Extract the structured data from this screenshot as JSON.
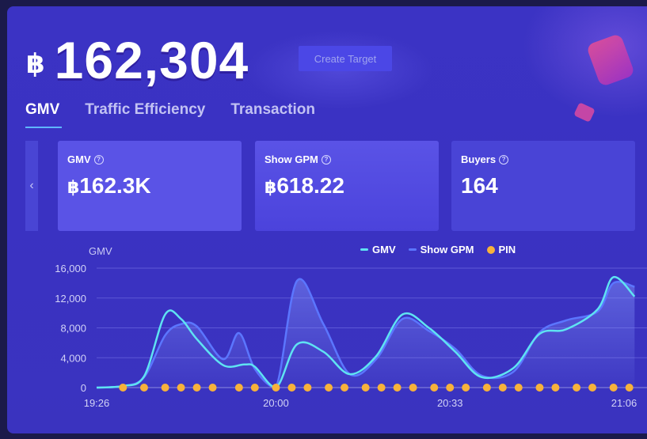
{
  "hero": {
    "currency": "฿",
    "value": "162,304",
    "target_button": "Create Target"
  },
  "tabs": [
    {
      "label": "GMV",
      "active": true
    },
    {
      "label": "Traffic Efficiency",
      "active": false
    },
    {
      "label": "Transaction",
      "active": false
    }
  ],
  "carousel": {
    "prev_icon": "chevron-left-icon",
    "prev_glyph": "‹"
  },
  "cards": [
    {
      "label": "GMV",
      "currency": "฿",
      "value": "162.3K",
      "highlight": true
    },
    {
      "label": "Show GPM",
      "currency": "฿",
      "value": "618.22",
      "highlight": true
    },
    {
      "label": "Buyers",
      "currency": "",
      "value": "164",
      "highlight": false
    }
  ],
  "help_glyph": "?",
  "chart_data": {
    "type": "line",
    "ylabel": "GMV",
    "ylim": [
      0,
      16000
    ],
    "yticks": [
      "16,000",
      "12,000",
      "8,000",
      "4,000",
      "0"
    ],
    "xticks": [
      {
        "label": "19:26",
        "t": 0
      },
      {
        "label": "20:00",
        "t": 34
      },
      {
        "label": "20:33",
        "t": 67
      },
      {
        "label": "21:06",
        "t": 100
      }
    ],
    "grid": true,
    "legend": [
      "GMV",
      "Show GPM",
      "PIN"
    ],
    "colors": {
      "gmv": "#5fe3f2",
      "gpm": "#5b76ff",
      "pin": "#f7b23b"
    },
    "series": [
      {
        "name": "GMV",
        "x": [
          0,
          5,
          9,
          13,
          16,
          19,
          24,
          28,
          30,
          34,
          38,
          43,
          48,
          53,
          58,
          63,
          68,
          73,
          79,
          84,
          89,
          95,
          98,
          102
        ],
        "values": [
          0,
          200,
          1500,
          9800,
          9200,
          6500,
          3000,
          3100,
          2800,
          0,
          5800,
          4800,
          1800,
          4200,
          9800,
          8000,
          4800,
          1400,
          2600,
          7200,
          7800,
          10500,
          14800,
          12200
        ]
      },
      {
        "name": "Show GPM",
        "x": [
          0,
          5,
          9,
          13,
          16,
          19,
          24,
          27,
          30,
          34,
          38,
          43,
          48,
          53,
          58,
          63,
          68,
          73,
          79,
          84,
          89,
          95,
          98,
          102
        ],
        "values": [
          0,
          200,
          1400,
          7000,
          8500,
          8200,
          3800,
          7300,
          2500,
          0,
          14300,
          8500,
          1800,
          3800,
          9200,
          7600,
          5200,
          1600,
          2100,
          7400,
          9000,
          10200,
          14000,
          13500
        ]
      }
    ],
    "pins_x": [
      5,
      9,
      13,
      16,
      19,
      22,
      27,
      30,
      34,
      37,
      40,
      44,
      47,
      51,
      54,
      57,
      60,
      64,
      67,
      70,
      74,
      77,
      80,
      84,
      87,
      91,
      94,
      98,
      101
    ]
  }
}
